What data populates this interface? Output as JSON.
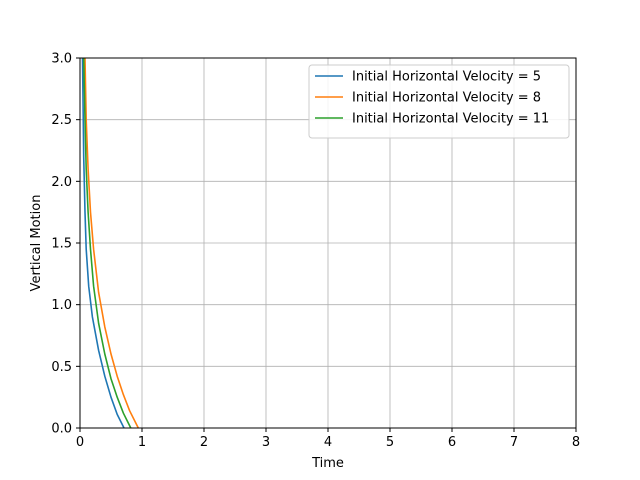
{
  "chart_data": {
    "type": "line",
    "title": "",
    "xlabel": "Time",
    "ylabel": "Vertical Motion",
    "xlim": [
      0,
      8
    ],
    "ylim": [
      0,
      3.0
    ],
    "xticks": [
      0,
      1,
      2,
      3,
      4,
      5,
      6,
      7,
      8
    ],
    "yticks": [
      0.0,
      0.5,
      1.0,
      1.5,
      2.0,
      2.5,
      3.0
    ],
    "xtick_labels": [
      "0",
      "1",
      "2",
      "3",
      "4",
      "5",
      "6",
      "7",
      "8"
    ],
    "ytick_labels": [
      "0.0",
      "0.5",
      "1.0",
      "1.5",
      "2.0",
      "2.5",
      "3.0"
    ],
    "grid": true,
    "legend_position": "top-right",
    "series": [
      {
        "name": "Initial Horizontal Velocity = 5",
        "color": "#1f77b4",
        "x": [
          0.04,
          0.06,
          0.08,
          0.1,
          0.14,
          0.2,
          0.3,
          0.4,
          0.5,
          0.6,
          0.71
        ],
        "y": [
          3.0,
          2.2,
          1.75,
          1.45,
          1.15,
          0.9,
          0.63,
          0.42,
          0.25,
          0.11,
          0.0
        ]
      },
      {
        "name": "Initial Horizontal Velocity = 8",
        "color": "#ff7f0e",
        "x": [
          0.08,
          0.1,
          0.13,
          0.17,
          0.22,
          0.3,
          0.4,
          0.5,
          0.6,
          0.7,
          0.8,
          0.94
        ],
        "y": [
          3.0,
          2.5,
          2.1,
          1.75,
          1.45,
          1.1,
          0.82,
          0.6,
          0.42,
          0.27,
          0.14,
          0.0
        ]
      },
      {
        "name": "Initial Horizontal Velocity = 11",
        "color": "#2ca02c",
        "x": [
          0.06,
          0.08,
          0.1,
          0.13,
          0.17,
          0.22,
          0.3,
          0.4,
          0.5,
          0.6,
          0.7,
          0.82
        ],
        "y": [
          3.0,
          2.5,
          2.1,
          1.75,
          1.45,
          1.15,
          0.85,
          0.6,
          0.4,
          0.25,
          0.12,
          0.0
        ]
      }
    ]
  }
}
